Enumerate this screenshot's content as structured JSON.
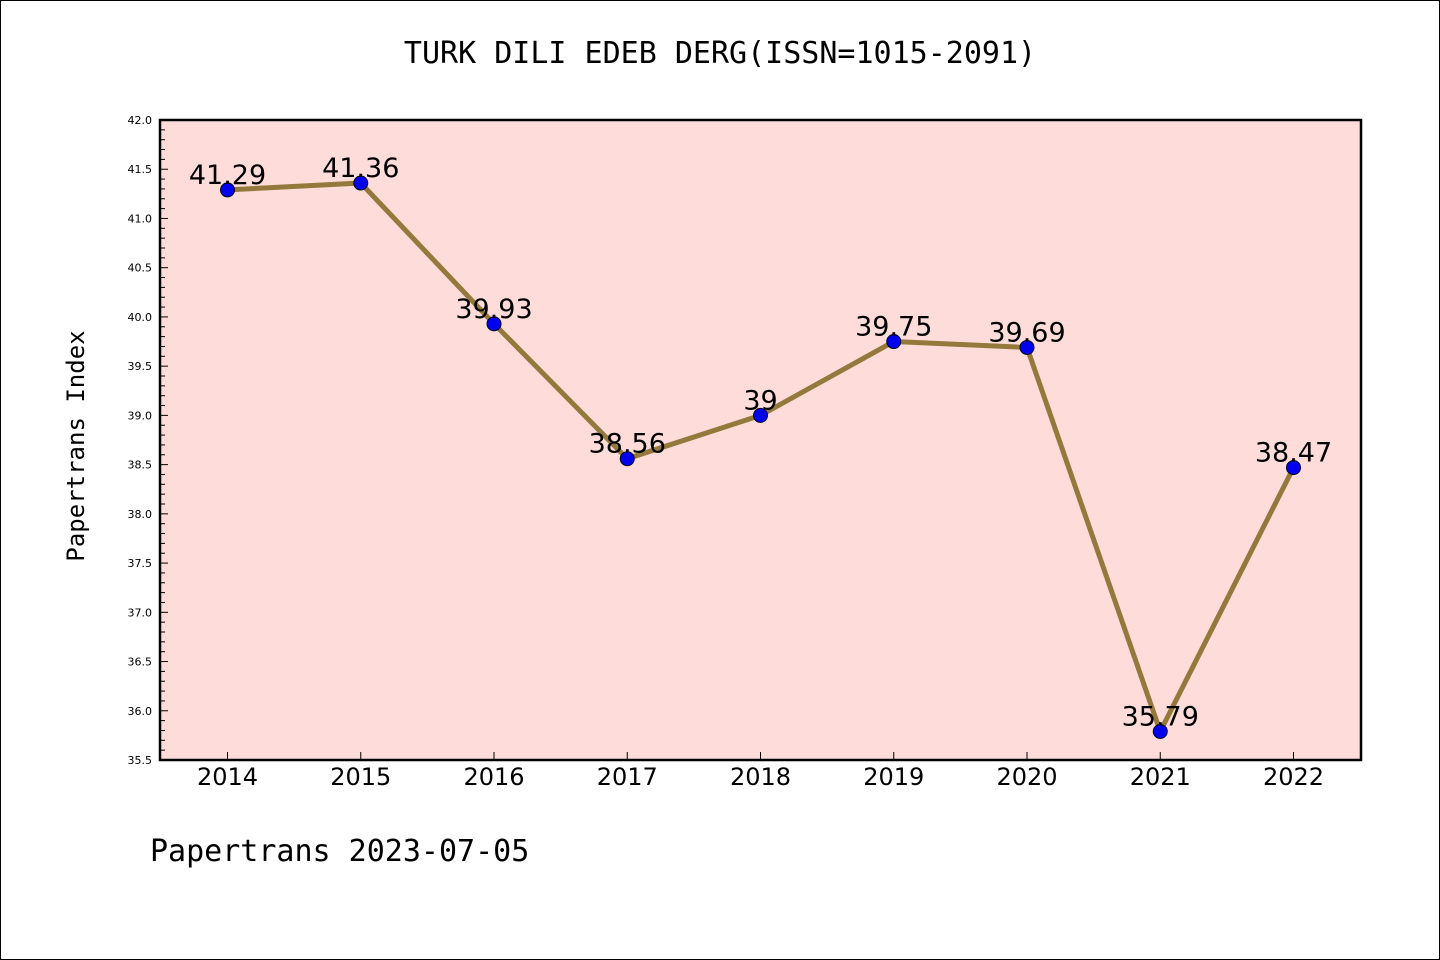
{
  "colors": {
    "plot_background": "#fddcda",
    "line": "#95793c",
    "marker": "#0000ee",
    "axis": "#000000"
  },
  "footer": "Papertrans 2023-07-05",
  "chart_data": {
    "type": "line",
    "title": "TURK DILI EDEB DERG(ISSN=1015-2091)",
    "xlabel": "",
    "ylabel": "Papertrans Index",
    "categories": [
      "2014",
      "2015",
      "2016",
      "2017",
      "2018",
      "2019",
      "2020",
      "2021",
      "2022"
    ],
    "series": [
      {
        "values": [
          41.29,
          41.36,
          39.93,
          38.56,
          39,
          39.75,
          39.69,
          35.79,
          38.47
        ],
        "labels": [
          "41.29",
          "41.36",
          "39.93",
          "38.56",
          "39",
          "39.75",
          "39.69",
          "35.79",
          "38.47"
        ]
      }
    ],
    "ylim": [
      35.5,
      42.0
    ],
    "yticks": [
      "35.5",
      "36.0",
      "36.5",
      "37.0",
      "37.5",
      "38.0",
      "38.5",
      "39.0",
      "39.5",
      "40.0",
      "40.5",
      "41.0",
      "41.5",
      "42.0"
    ],
    "grid": false,
    "legend": "none"
  }
}
